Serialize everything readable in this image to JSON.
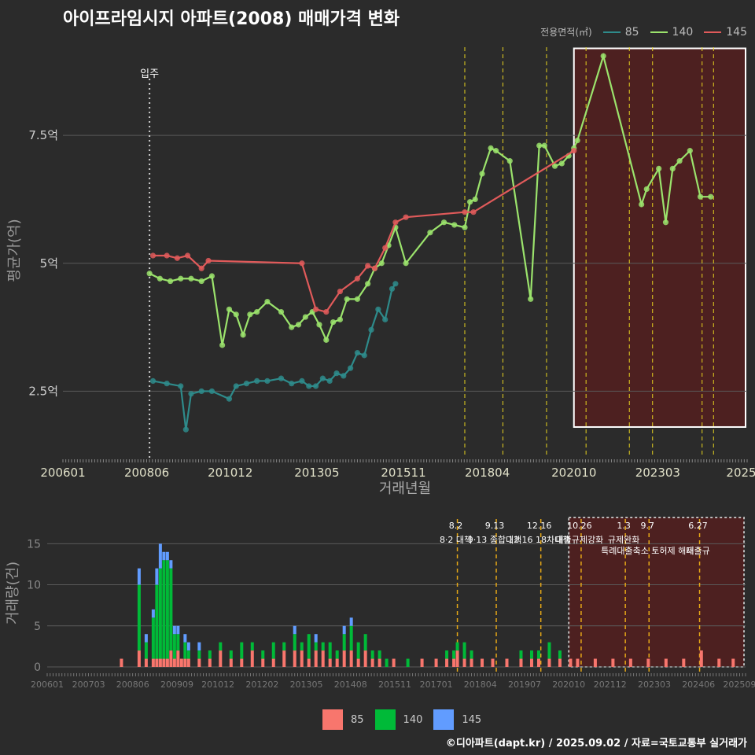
{
  "title": "아이프라임시지 아파트(2008) 매매가격 변화",
  "footer": "©디아파트(dapt.kr) / 2025.09.02 / 자료=국토교통부 실거래가",
  "legend_top": {
    "title": "전용면적(㎡)",
    "items": [
      {
        "label": "85",
        "color": "#2e8b8b"
      },
      {
        "label": "140",
        "color": "#9be36c"
      },
      {
        "label": "145",
        "color": "#e05a5a"
      }
    ]
  },
  "legend_bottom": {
    "items": [
      {
        "label": "85",
        "color": "#f8766d"
      },
      {
        "label": "140",
        "color": "#00ba38"
      },
      {
        "label": "145",
        "color": "#619cff"
      }
    ]
  },
  "chart_data": [
    {
      "type": "line",
      "title": "아이프라임시지 아파트(2008) 매매가격 변화",
      "xlabel": "거래년월",
      "ylabel": "평균가(억)",
      "xlim": [
        2006.0,
        2025.75
      ],
      "ylim": [
        1.2,
        9.3
      ],
      "x_tick_values": [
        2006.0,
        2008.42,
        2010.83,
        2013.33,
        2015.83,
        2018.25,
        2020.75,
        2023.17,
        2025.58
      ],
      "x_tick_labels": [
        "200601",
        "200806",
        "201012",
        "201305",
        "201511",
        "201804",
        "202010",
        "202303",
        "2025"
      ],
      "y_tick_values": [
        2.5,
        5,
        7.5
      ],
      "y_tick_labels": [
        "2.5억",
        "5억",
        "7.5억"
      ],
      "move_in": {
        "x": 2008.5,
        "label": "입주"
      },
      "policy_dates": [
        2017.6,
        2018.7,
        2019.96,
        2021.1,
        2022.35,
        2023.02,
        2024.45,
        2024.78
      ],
      "highlight": {
        "x0": 2020.75,
        "x1": 2025.75,
        "y0": 1.8,
        "y1": 9.2
      },
      "series": [
        {
          "name": "85",
          "color": "#2e8b8b",
          "x": [
            2008.6,
            2009.0,
            2009.4,
            2009.55,
            2009.7,
            2010.0,
            2010.3,
            2010.8,
            2011.0,
            2011.3,
            2011.6,
            2011.9,
            2012.3,
            2012.6,
            2012.9,
            2013.1,
            2013.3,
            2013.5,
            2013.7,
            2013.9,
            2014.1,
            2014.3,
            2014.5,
            2014.7,
            2014.9,
            2015.1,
            2015.3,
            2015.5,
            2015.6
          ],
          "y": [
            2.7,
            2.65,
            2.6,
            1.75,
            2.45,
            2.5,
            2.5,
            2.35,
            2.6,
            2.65,
            2.7,
            2.7,
            2.75,
            2.65,
            2.7,
            2.6,
            2.6,
            2.75,
            2.7,
            2.85,
            2.8,
            2.95,
            3.25,
            3.2,
            3.7,
            4.1,
            3.9,
            4.5,
            4.6
          ]
        },
        {
          "name": "140",
          "color": "#9be36c",
          "x": [
            2008.5,
            2008.8,
            2009.1,
            2009.4,
            2009.7,
            2010.0,
            2010.3,
            2010.6,
            2010.8,
            2011.0,
            2011.2,
            2011.4,
            2011.6,
            2011.9,
            2012.3,
            2012.6,
            2012.8,
            2013.0,
            2013.2,
            2013.4,
            2013.6,
            2013.8,
            2014.0,
            2014.2,
            2014.5,
            2014.8,
            2015.0,
            2015.2,
            2015.4,
            2015.6,
            2015.9,
            2016.6,
            2017.0,
            2017.3,
            2017.6,
            2017.75,
            2017.9,
            2018.1,
            2018.35,
            2018.5,
            2018.9,
            2019.5,
            2019.75,
            2019.9,
            2020.2,
            2020.4,
            2020.6,
            2020.75,
            2020.85,
            2021.6,
            2022.7,
            2022.85,
            2023.2,
            2023.4,
            2023.6,
            2023.8,
            2024.1,
            2024.4,
            2024.7
          ],
          "y": [
            4.8,
            4.7,
            4.65,
            4.7,
            4.7,
            4.65,
            4.75,
            3.4,
            4.1,
            4.0,
            3.6,
            4.0,
            4.05,
            4.25,
            4.05,
            3.75,
            3.8,
            3.95,
            4.05,
            3.8,
            3.5,
            3.85,
            3.9,
            4.3,
            4.3,
            4.6,
            4.9,
            5.0,
            5.35,
            5.7,
            5.0,
            5.6,
            5.8,
            5.75,
            5.7,
            6.2,
            6.25,
            6.75,
            7.25,
            7.2,
            7.0,
            4.3,
            7.3,
            7.3,
            6.9,
            6.95,
            7.1,
            7.25,
            7.4,
            9.05,
            6.15,
            6.45,
            6.85,
            5.8,
            6.85,
            7.0,
            7.2,
            6.3,
            6.3
          ]
        },
        {
          "name": "145",
          "color": "#e05a5a",
          "x": [
            2008.6,
            2009.0,
            2009.3,
            2009.6,
            2010.0,
            2010.2,
            2012.9,
            2013.3,
            2013.6,
            2014.0,
            2014.5,
            2014.8,
            2015.0,
            2015.3,
            2015.6,
            2015.9,
            2017.6,
            2017.85,
            2020.75
          ],
          "y": [
            5.15,
            5.15,
            5.1,
            5.15,
            4.9,
            5.05,
            5.0,
            4.1,
            4.05,
            4.45,
            4.7,
            4.95,
            4.9,
            5.3,
            5.8,
            5.9,
            6.0,
            6.0,
            7.2
          ]
        }
      ]
    },
    {
      "type": "bar",
      "title": "",
      "xlabel": "",
      "ylabel": "거래량(건)",
      "ylim": [
        0,
        18
      ],
      "y_tick_values": [
        0,
        5,
        10,
        15
      ],
      "y_tick_labels": [
        "0",
        "5",
        "10",
        "15"
      ],
      "x_tick_values": [
        2006.0,
        2007.17,
        2008.42,
        2009.67,
        2010.83,
        2012.08,
        2013.33,
        2014.58,
        2015.83,
        2017.0,
        2018.25,
        2019.5,
        2020.75,
        2021.92,
        2023.17,
        2024.42,
        2025.58
      ],
      "x_tick_labels": [
        "200601",
        "200703",
        "200806",
        "200909",
        "201012",
        "201202",
        "201305",
        "201408",
        "201511",
        "201701",
        "201804",
        "201907",
        "202010",
        "202112",
        "202303",
        "202406",
        "202509"
      ],
      "policies": [
        {
          "x": 2017.6,
          "date": "8.2",
          "label": "8·2 대책"
        },
        {
          "x": 2018.7,
          "date": "9.13",
          "label": "9·13 종합대책"
        },
        {
          "x": 2019.96,
          "date": "12.16",
          "label": "12·16 18차대책"
        },
        {
          "x": 2021.1,
          "date": "10.26",
          "label": "대출규제강화"
        },
        {
          "x": 2022.35,
          "date": "1.3",
          "label": "규제완화"
        },
        {
          "x": 2023.02,
          "date": "9.7",
          "label": "특례대출축소 토허제 해제"
        },
        {
          "x": 2024.45,
          "date": "6.27",
          "label": "대출규"
        }
      ],
      "highlight": {
        "x0": 2020.75,
        "x1": 2025.75
      },
      "x": [
        2008.1,
        2008.6,
        2008.8,
        2009.0,
        2009.1,
        2009.2,
        2009.3,
        2009.4,
        2009.5,
        2009.6,
        2009.7,
        2009.8,
        2009.9,
        2010.0,
        2010.3,
        2010.6,
        2010.9,
        2011.2,
        2011.5,
        2011.8,
        2012.1,
        2012.4,
        2012.7,
        2013.0,
        2013.2,
        2013.4,
        2013.6,
        2013.8,
        2014.0,
        2014.2,
        2014.4,
        2014.6,
        2014.8,
        2015.0,
        2015.2,
        2015.4,
        2015.6,
        2015.8,
        2016.2,
        2016.6,
        2017.0,
        2017.3,
        2017.5,
        2017.6,
        2017.8,
        2018.0,
        2018.3,
        2018.6,
        2019.0,
        2019.4,
        2019.7,
        2019.9,
        2020.2,
        2020.5,
        2020.8,
        2021.0,
        2021.5,
        2022.0,
        2022.5,
        2023.0,
        2023.5,
        2024.0,
        2024.5,
        2025.0,
        2025.4
      ],
      "series": [
        {
          "name": "85",
          "color": "#f8766d",
          "values": [
            1,
            2,
            1,
            1,
            1,
            1,
            1,
            1,
            2,
            1,
            2,
            1,
            1,
            1,
            1,
            1,
            2,
            1,
            1,
            2,
            1,
            1,
            2,
            2,
            2,
            1,
            2,
            2,
            1,
            1,
            2,
            2,
            1,
            2,
            1,
            1,
            0,
            1,
            0,
            1,
            1,
            1,
            1,
            2,
            1,
            1,
            1,
            1,
            1,
            1,
            1,
            1,
            1,
            1,
            1,
            1,
            1,
            1,
            1,
            1,
            1,
            1,
            2,
            1,
            1
          ]
        },
        {
          "name": "140",
          "color": "#00ba38",
          "values": [
            0,
            8,
            2,
            5,
            9,
            11,
            12,
            12,
            10,
            3,
            2,
            0,
            2,
            1,
            1,
            1,
            1,
            1,
            2,
            1,
            1,
            2,
            1,
            2,
            1,
            3,
            1,
            1,
            2,
            1,
            2,
            3,
            2,
            2,
            1,
            1,
            1,
            0,
            1,
            0,
            0,
            1,
            1,
            1,
            2,
            1,
            0,
            0,
            0,
            1,
            1,
            1,
            2,
            1,
            0,
            0,
            0,
            0,
            0,
            0,
            0,
            0,
            0,
            0,
            0
          ]
        },
        {
          "name": "145",
          "color": "#619cff",
          "values": [
            0,
            2,
            1,
            1,
            2,
            3,
            1,
            1,
            1,
            1,
            1,
            0,
            1,
            1,
            1,
            0,
            0,
            0,
            0,
            0,
            0,
            0,
            0,
            1,
            0,
            0,
            1,
            0,
            0,
            0,
            1,
            1,
            0,
            0,
            0,
            0,
            0,
            0,
            0,
            0,
            0,
            0,
            0,
            0,
            0,
            0,
            0,
            0,
            0,
            0,
            0,
            0,
            0,
            0,
            0,
            0,
            0,
            0,
            0,
            0,
            0,
            0,
            0,
            0,
            0
          ]
        }
      ]
    }
  ]
}
